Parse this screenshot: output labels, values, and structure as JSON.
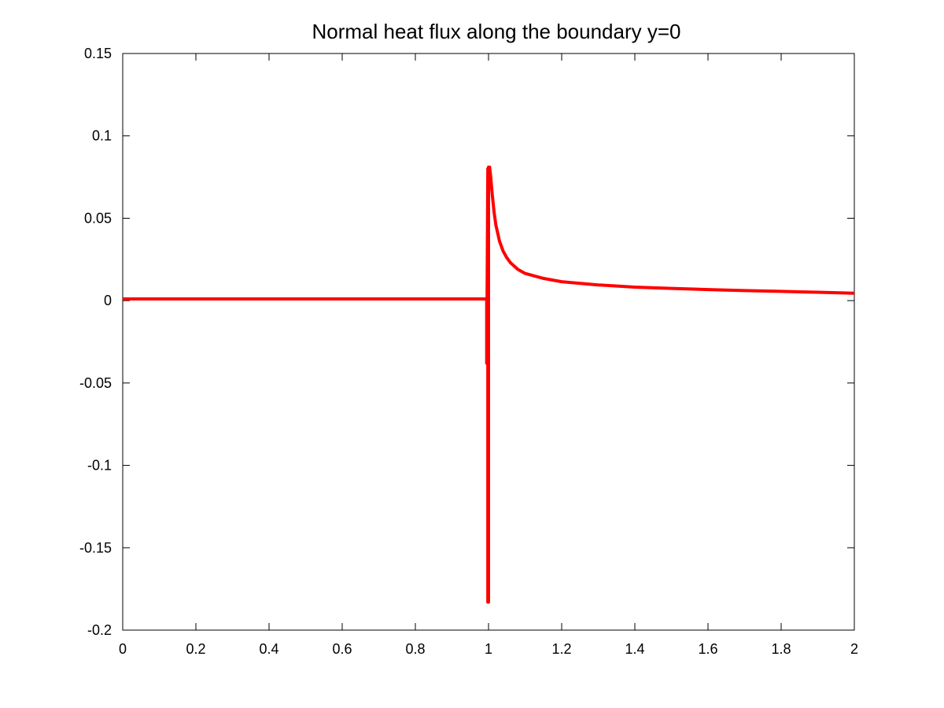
{
  "chart_data": {
    "type": "line",
    "title": "Normal heat flux along the boundary y=0",
    "xlabel": "",
    "ylabel": "",
    "xlim": [
      0,
      2
    ],
    "ylim": [
      -0.2,
      0.15
    ],
    "grid": false,
    "x_ticks": [
      0,
      0.2,
      0.4,
      0.6,
      0.8,
      1,
      1.2,
      1.4,
      1.6,
      1.8,
      2
    ],
    "x_tick_labels": [
      "0",
      "0.2",
      "0.4",
      "0.6",
      "0.8",
      "1",
      "1.2",
      "1.4",
      "1.6",
      "1.8",
      "2"
    ],
    "y_ticks": [
      -0.2,
      -0.15,
      -0.1,
      -0.05,
      0,
      0.05,
      0.1,
      0.15
    ],
    "y_tick_labels": [
      "-0.2",
      "-0.15",
      "-0.1",
      "-0.05",
      "0",
      "0.05",
      "0.1",
      "0.15"
    ],
    "series": [
      {
        "color": "#ff0000",
        "x": [
          0,
          0.5,
          0.99,
          0.995,
          0.995,
          0.998,
          0.998,
          1.0,
          1.0,
          1.003,
          1.006,
          1.01,
          1.015,
          1.02,
          1.03,
          1.04,
          1.05,
          1.06,
          1.08,
          1.1,
          1.15,
          1.2,
          1.3,
          1.4,
          1.5,
          1.6,
          1.7,
          1.8,
          1.9,
          2.0
        ],
        "y": [
          0.001,
          0.001,
          0.001,
          0.001,
          -0.038,
          0.08,
          -0.183,
          -0.183,
          0.081,
          0.081,
          0.075,
          0.065,
          0.054,
          0.046,
          0.036,
          0.03,
          0.026,
          0.023,
          0.019,
          0.0165,
          0.0135,
          0.0115,
          0.0095,
          0.0082,
          0.0074,
          0.0067,
          0.0061,
          0.0056,
          0.0051,
          0.0045
        ]
      }
    ]
  }
}
